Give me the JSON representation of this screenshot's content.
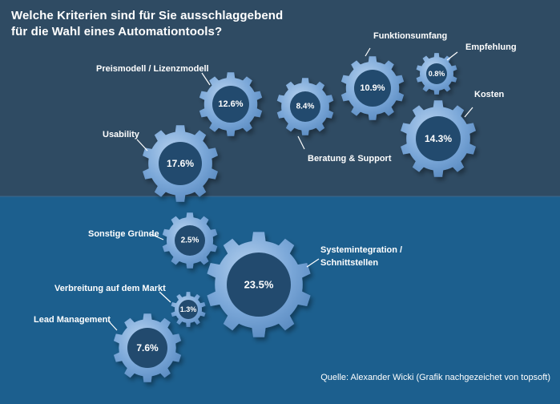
{
  "title_line1": "Welche Kriterien sind für Sie ausschlaggebend",
  "title_line2": "für die Wahl eines  Automationtools?",
  "source": "Quelle: Alexander Wicki (Grafik nachgezeichet von topsoft)",
  "colors": {
    "top_bg": "#2f4b63",
    "bottom_bg": "#1c5f8e",
    "gear_fill": "#7aa7d8",
    "gear_hub": "#224a6e",
    "text": "#ffffff"
  },
  "chart_data": {
    "type": "gear-bubble",
    "unit": "%",
    "items": [
      {
        "label": "Usability",
        "value": 17.6,
        "display": "17.6%"
      },
      {
        "label": "Preismodell / Lizenzmodell",
        "value": 12.6,
        "display": "12.6%"
      },
      {
        "label": "Beratung & Support",
        "value": 8.4,
        "display": "8.4%"
      },
      {
        "label": "Funktionsumfang",
        "value": 10.9,
        "display": "10.9%"
      },
      {
        "label": "Empfehlung",
        "value": 0.8,
        "display": "0.8%"
      },
      {
        "label": "Kosten",
        "value": 14.3,
        "display": "14.3%"
      },
      {
        "label": "Sonstige Gründe",
        "value": 2.5,
        "display": "2.5%"
      },
      {
        "label": "Systemintegration / Schnittstellen",
        "label_lines": [
          "Systemintegration /",
          "Schnittstellen"
        ],
        "value": 23.5,
        "display": "23.5%"
      },
      {
        "label": "Verbreitung auf dem Markt",
        "value": 1.3,
        "display": "1.3%"
      },
      {
        "label": "Lead Management",
        "value": 7.6,
        "display": "7.6%"
      }
    ]
  }
}
